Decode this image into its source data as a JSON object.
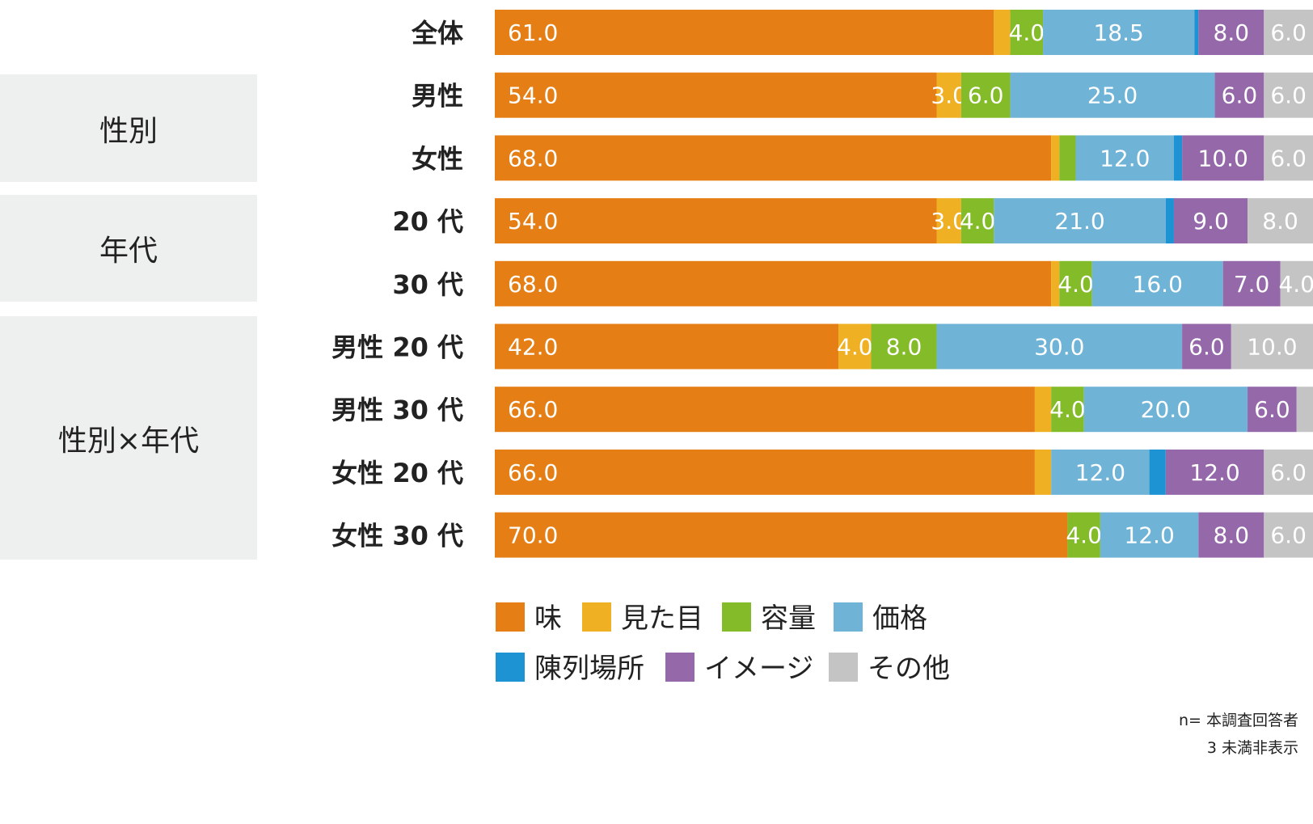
{
  "groups": [
    {
      "label": "性別"
    },
    {
      "label": "年代"
    },
    {
      "label": "性別×年代"
    }
  ],
  "footnotes": [
    "n= 本調査回答者",
    "3 未満非表示"
  ],
  "chart_data": {
    "type": "bar",
    "orientation": "horizontal",
    "stacked": "100%",
    "categories": [
      "全体",
      "男性",
      "女性",
      "20 代",
      "30 代",
      "男性 20 代",
      "男性 30 代",
      "女性 20 代",
      "女性 30 代"
    ],
    "series": [
      {
        "name": "味",
        "color": "#e57f15",
        "values": [
          61.0,
          54.0,
          68.0,
          54.0,
          68.0,
          42.0,
          66.0,
          66.0,
          70.0
        ]
      },
      {
        "name": "見た目",
        "color": "#efb023",
        "values": [
          2.0,
          3.0,
          1.0,
          3.0,
          1.0,
          4.0,
          2.0,
          2.0,
          0.0
        ]
      },
      {
        "name": "容量",
        "color": "#83bb29",
        "values": [
          4.0,
          6.0,
          2.0,
          4.0,
          4.0,
          8.0,
          4.0,
          0.0,
          4.0
        ]
      },
      {
        "name": "価格",
        "color": "#6fb3d6",
        "values": [
          18.5,
          25.0,
          12.0,
          21.0,
          16.0,
          30.0,
          20.0,
          12.0,
          12.0
        ]
      },
      {
        "name": "陳列場所",
        "color": "#1e93d4",
        "values": [
          0.5,
          0.0,
          1.0,
          1.0,
          0.0,
          0.0,
          0.0,
          2.0,
          0.0
        ]
      },
      {
        "name": "イメージ",
        "color": "#9569a9",
        "values": [
          8.0,
          6.0,
          10.0,
          9.0,
          7.0,
          6.0,
          6.0,
          12.0,
          8.0
        ]
      },
      {
        "name": "その他",
        "color": "#c4c4c4",
        "values": [
          6.0,
          6.0,
          6.0,
          8.0,
          4.0,
          10.0,
          2.0,
          6.0,
          6.0
        ]
      }
    ],
    "label_threshold": 3,
    "xlim": [
      0,
      100
    ],
    "legend_position": "bottom"
  }
}
